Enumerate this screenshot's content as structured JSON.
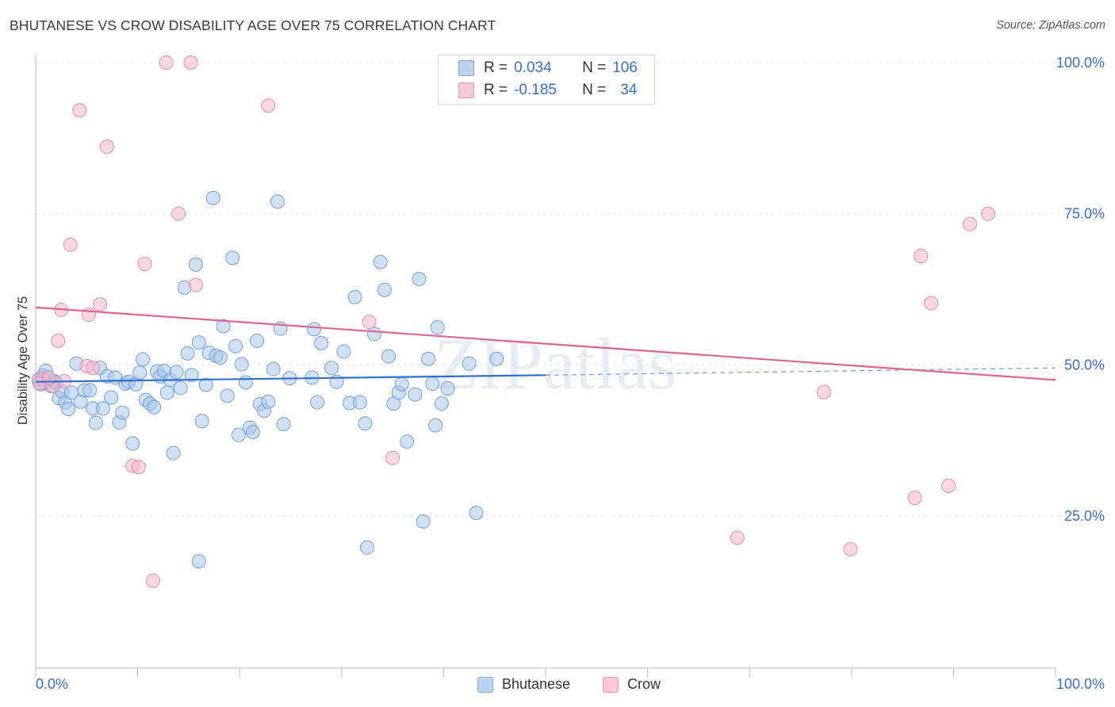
{
  "title": "BHUTANESE VS CROW DISABILITY AGE OVER 75 CORRELATION CHART",
  "source": "Source: ZipAtlas.com",
  "legend": {
    "rows": [
      {
        "r_label": "R =",
        "r_value": "0.034",
        "n_label": "N =",
        "n_value": "106"
      },
      {
        "r_label": "R =",
        "r_value": "-0.185",
        "n_label": "N =",
        "n_value": "34"
      }
    ]
  },
  "colors": {
    "blue_fill": "#a9c6ec",
    "blue_stroke": "#6f9fdc",
    "blue_line": "#2f6fcf",
    "pink_fill": "#f5b8cb",
    "pink_stroke": "#e98aa8",
    "pink_line": "#e0648f",
    "tick_label": "#3a6fd0"
  },
  "chart_data": {
    "type": "scatter",
    "title": "BHUTANESE VS CROW DISABILITY AGE OVER 75 CORRELATION CHART",
    "ylabel": "Disability Age Over 75",
    "xlabel": "",
    "xlim": [
      0,
      100
    ],
    "ylim": [
      0,
      102
    ],
    "x_tick_labels": [
      "0.0%",
      "100.0%"
    ],
    "y_ticks": [
      25,
      50,
      75,
      100
    ],
    "y_tick_labels": [
      "25.0%",
      "50.0%",
      "75.0%",
      "100.0%"
    ],
    "watermark": "ZIPatlas",
    "series": [
      {
        "name": "Bhutanese",
        "regression": {
          "x0": 0,
          "y0": 47.2,
          "x1": 50,
          "y1": 48.3,
          "dashed_to_x": 100,
          "dashed_to_y": 49.5
        },
        "points": [
          [
            0.3,
            47.5
          ],
          [
            0.5,
            46.8
          ],
          [
            0.7,
            48.2
          ],
          [
            0.9,
            47.0
          ],
          [
            1.2,
            48.0
          ],
          [
            1.5,
            46.5
          ],
          [
            1.8,
            47.3
          ],
          [
            2.0,
            47.1
          ],
          [
            2.3,
            44.5
          ],
          [
            2.6,
            45.6
          ],
          [
            2.9,
            43.8
          ],
          [
            3.2,
            42.7
          ],
          [
            3.5,
            45.4
          ],
          [
            4.0,
            50.2
          ],
          [
            4.4,
            43.9
          ],
          [
            4.8,
            45.8
          ],
          [
            5.3,
            45.8
          ],
          [
            5.6,
            42.8
          ],
          [
            5.9,
            40.4
          ],
          [
            6.3,
            49.5
          ],
          [
            6.6,
            42.8
          ],
          [
            7.0,
            48.1
          ],
          [
            7.4,
            44.6
          ],
          [
            7.8,
            47.9
          ],
          [
            8.2,
            40.5
          ],
          [
            8.5,
            42.1
          ],
          [
            8.8,
            46.9
          ],
          [
            9.1,
            47.2
          ],
          [
            9.5,
            37.0
          ],
          [
            9.8,
            46.8
          ],
          [
            10.2,
            48.7
          ],
          [
            10.5,
            50.9
          ],
          [
            10.8,
            44.2
          ],
          [
            11.2,
            43.6
          ],
          [
            11.6,
            43.0
          ],
          [
            11.9,
            48.9
          ],
          [
            12.2,
            48.1
          ],
          [
            12.6,
            49.0
          ],
          [
            12.9,
            45.4
          ],
          [
            13.2,
            47.5
          ],
          [
            13.5,
            35.4
          ],
          [
            13.8,
            48.8
          ],
          [
            14.2,
            46.2
          ],
          [
            14.6,
            62.8
          ],
          [
            14.9,
            51.9
          ],
          [
            15.3,
            48.3
          ],
          [
            15.7,
            66.6
          ],
          [
            16.0,
            53.7
          ],
          [
            16.3,
            40.7
          ],
          [
            16.7,
            46.7
          ],
          [
            17.0,
            52.0
          ],
          [
            17.4,
            77.6
          ],
          [
            17.7,
            51.5
          ],
          [
            18.1,
            51.2
          ],
          [
            18.4,
            56.4
          ],
          [
            18.8,
            44.9
          ],
          [
            19.3,
            67.7
          ],
          [
            19.6,
            53.1
          ],
          [
            19.9,
            38.4
          ],
          [
            20.2,
            50.1
          ],
          [
            20.6,
            47.1
          ],
          [
            21.0,
            39.6
          ],
          [
            21.3,
            38.9
          ],
          [
            21.7,
            54.0
          ],
          [
            22.0,
            43.5
          ],
          [
            22.4,
            42.4
          ],
          [
            22.8,
            43.9
          ],
          [
            23.3,
            49.3
          ],
          [
            23.7,
            77.0
          ],
          [
            24.0,
            56.0
          ],
          [
            24.3,
            40.2
          ],
          [
            24.9,
            47.8
          ],
          [
            27.1,
            47.9
          ],
          [
            27.3,
            55.9
          ],
          [
            27.6,
            43.8
          ],
          [
            28.0,
            53.6
          ],
          [
            29.0,
            49.5
          ],
          [
            29.5,
            47.2
          ],
          [
            30.2,
            52.2
          ],
          [
            30.8,
            43.7
          ],
          [
            31.3,
            61.2
          ],
          [
            31.8,
            43.8
          ],
          [
            32.3,
            40.3
          ],
          [
            33.2,
            55.1
          ],
          [
            33.8,
            67.0
          ],
          [
            34.2,
            62.4
          ],
          [
            34.6,
            51.4
          ],
          [
            35.1,
            43.6
          ],
          [
            35.6,
            45.4
          ],
          [
            35.9,
            46.8
          ],
          [
            36.4,
            37.3
          ],
          [
            37.2,
            45.1
          ],
          [
            37.6,
            64.2
          ],
          [
            38.0,
            24.1
          ],
          [
            38.5,
            51.0
          ],
          [
            38.9,
            46.9
          ],
          [
            39.2,
            40.0
          ],
          [
            39.4,
            56.2
          ],
          [
            39.8,
            43.6
          ],
          [
            40.4,
            46.1
          ],
          [
            42.5,
            50.2
          ],
          [
            43.2,
            25.5
          ],
          [
            45.2,
            51.0
          ],
          [
            16.0,
            17.5
          ],
          [
            32.5,
            19.8
          ],
          [
            1.0,
            49.0
          ]
        ]
      },
      {
        "name": "Crow",
        "regression": {
          "x0": 0,
          "y0": 59.5,
          "x1": 100,
          "y1": 47.5
        },
        "points": [
          [
            0.6,
            47.7
          ],
          [
            1.7,
            46.5
          ],
          [
            2.8,
            47.3
          ],
          [
            3.4,
            69.9
          ],
          [
            4.3,
            92.1
          ],
          [
            5.0,
            49.8
          ],
          [
            5.2,
            58.3
          ],
          [
            5.6,
            49.5
          ],
          [
            6.3,
            60.0
          ],
          [
            7.0,
            86.1
          ],
          [
            9.5,
            33.3
          ],
          [
            10.1,
            33.1
          ],
          [
            10.7,
            66.7
          ],
          [
            11.5,
            14.3
          ],
          [
            12.8,
            100.0
          ],
          [
            14.0,
            75.0
          ],
          [
            15.2,
            100.0
          ],
          [
            15.7,
            63.2
          ],
          [
            22.8,
            92.9
          ],
          [
            2.2,
            54.0
          ],
          [
            2.5,
            59.1
          ],
          [
            32.7,
            57.1
          ],
          [
            35.0,
            34.6
          ],
          [
            68.8,
            21.4
          ],
          [
            77.3,
            45.5
          ],
          [
            79.9,
            19.5
          ],
          [
            86.2,
            28.0
          ],
          [
            86.8,
            68.0
          ],
          [
            87.8,
            60.2
          ],
          [
            89.5,
            30.0
          ],
          [
            91.6,
            73.3
          ],
          [
            93.4,
            75.0
          ],
          [
            0.4,
            47.0
          ],
          [
            1.3,
            47.8
          ]
        ]
      }
    ]
  }
}
